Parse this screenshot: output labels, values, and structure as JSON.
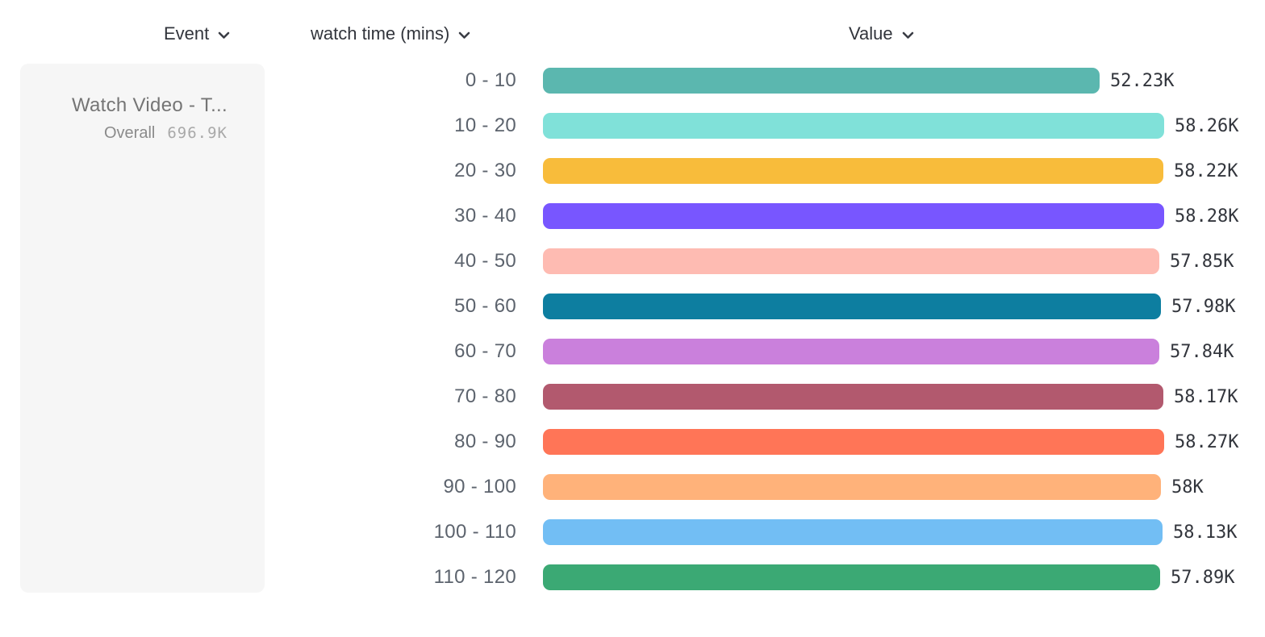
{
  "header": {
    "columns": [
      {
        "label": "Event"
      },
      {
        "label": "watch time (mins)"
      },
      {
        "label": "Value"
      }
    ]
  },
  "legend_card": {
    "event_name": "Watch Video - T...",
    "overall_label": "Overall",
    "overall_value": "696.9K",
    "background_color": "#f6f6f6"
  },
  "chart_data": {
    "type": "bar",
    "orientation": "horizontal",
    "title": "",
    "xlabel": "Value",
    "ylabel": "watch time (mins)",
    "series_name": "Watch Video - T...",
    "overall_total": "696.9K",
    "legend_position": "left",
    "grid": false,
    "xlim": [
      0,
      58280
    ],
    "categories": [
      "0 - 10",
      "10 - 20",
      "20 - 30",
      "30 - 40",
      "40 - 50",
      "50 - 60",
      "60 - 70",
      "70 - 80",
      "80 - 90",
      "90 - 100",
      "100 - 110",
      "110 - 120"
    ],
    "values": [
      52230,
      58260,
      58220,
      58280,
      57850,
      57980,
      57840,
      58170,
      58270,
      58000,
      58130,
      57890
    ],
    "value_labels": [
      "52.23K",
      "58.26K",
      "58.22K",
      "58.28K",
      "57.85K",
      "57.98K",
      "57.84K",
      "58.17K",
      "58.27K",
      "58K",
      "58.13K",
      "57.89K"
    ],
    "colors": [
      "#5BB7AF",
      "#80E1D9",
      "#F8BC3B",
      "#7856FF",
      "#FEBBB2",
      "#0D7EA0",
      "#CA80DC",
      "#B2596E",
      "#FF7557",
      "#FFB27A",
      "#72BEF4",
      "#3BA974"
    ]
  }
}
